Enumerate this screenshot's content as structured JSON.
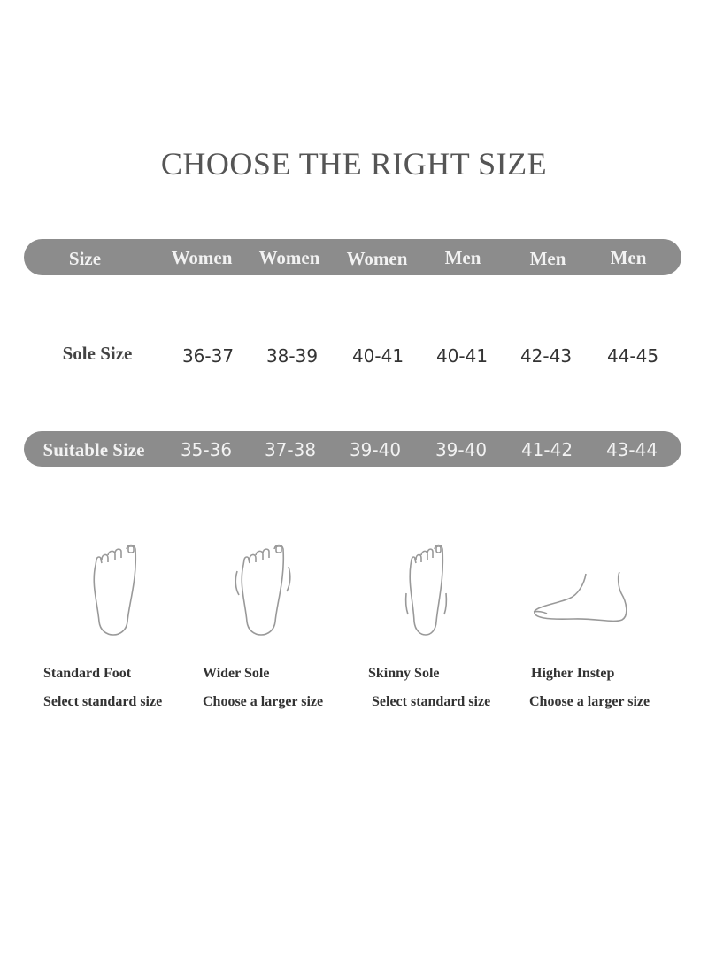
{
  "title": "CHOOSE THE RIGHT SIZE",
  "header": {
    "label": "Size",
    "columns": [
      "Women",
      "Women",
      "Women",
      "Men",
      "Men",
      "Men"
    ]
  },
  "sole_size": {
    "label": "Sole Size",
    "values": [
      "36-37",
      "38-39",
      "40-41",
      "40-41",
      "42-43",
      "44-45"
    ]
  },
  "suitable_size": {
    "label": "Suitable Size",
    "values": [
      "35-36",
      "37-38",
      "39-40",
      "39-40",
      "41-42",
      "43-44"
    ]
  },
  "feet": [
    {
      "icon": "standard-foot-icon",
      "name": "Standard Foot",
      "advice": "Select standard size"
    },
    {
      "icon": "wider-sole-icon",
      "name": "Wider Sole",
      "advice": "Choose a larger size"
    },
    {
      "icon": "skinny-sole-icon",
      "name": "Skinny Sole",
      "advice": "Select standard size"
    },
    {
      "icon": "higher-instep-icon",
      "name": "Higher Instep",
      "advice": "Choose a larger size"
    }
  ],
  "colors": {
    "bar": "#8c8c8c",
    "title": "#555555"
  }
}
